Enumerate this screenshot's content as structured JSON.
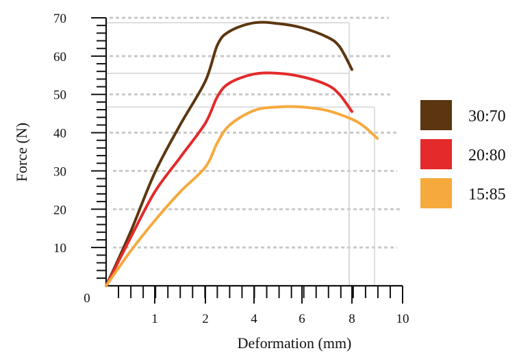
{
  "chart_data": {
    "type": "line",
    "xlabel": "Deformation (mm)",
    "ylabel": "Force (N)",
    "xlim": [
      0,
      10
    ],
    "ylim": [
      0,
      70
    ],
    "x_tick_labels": [
      {
        "label": "1",
        "at": 1
      },
      {
        "label": "2",
        "at": 2
      },
      {
        "label": "4",
        "at": 4
      },
      {
        "label": "6",
        "at": 6
      },
      {
        "label": "8",
        "at": 8
      },
      {
        "label": "10",
        "at": 10
      }
    ],
    "origin_label": "0",
    "y_tick_labels": [
      {
        "label": "10",
        "at": 10
      },
      {
        "label": "20",
        "at": 20
      },
      {
        "label": "30",
        "at": 30
      },
      {
        "label": "40",
        "at": 40
      },
      {
        "label": "50",
        "at": 50
      },
      {
        "label": "60",
        "at": 60
      },
      {
        "label": "70",
        "at": 70
      }
    ],
    "grid": "dashed horizontal lines",
    "legend_position": "right",
    "series": [
      {
        "name": "30:70",
        "color": "#5c3610",
        "x": [
          0,
          0.5,
          1.0,
          1.5,
          2.0,
          2.5,
          3.0,
          4.0,
          5.0,
          6.0,
          7.0,
          7.5,
          8.0
        ],
        "y": [
          0,
          14,
          29.5,
          42,
          53.5,
          63,
          66.5,
          68.7,
          68.5,
          67.4,
          65,
          62.5,
          56.5
        ]
      },
      {
        "name": "20:80",
        "color": "#e42a2a",
        "x": [
          0,
          0.5,
          1.0,
          1.5,
          2.0,
          2.5,
          3.0,
          4.0,
          5.0,
          6.0,
          7.0,
          7.5,
          8.0
        ],
        "y": [
          0,
          12.5,
          24.5,
          33.5,
          42.5,
          49.5,
          53,
          55.3,
          55.5,
          54.6,
          52.5,
          50,
          45.5
        ]
      },
      {
        "name": "15:85",
        "color": "#f6a93c",
        "x": [
          0,
          0.5,
          1.0,
          1.5,
          2.0,
          2.5,
          3.0,
          4.0,
          5.0,
          6.0,
          7.0,
          8.0,
          8.5,
          9.0
        ],
        "y": [
          0,
          9,
          17,
          24.5,
          31,
          37.5,
          42,
          45.8,
          46.7,
          46.7,
          45.8,
          43.5,
          41.5,
          38.5
        ]
      }
    ]
  }
}
